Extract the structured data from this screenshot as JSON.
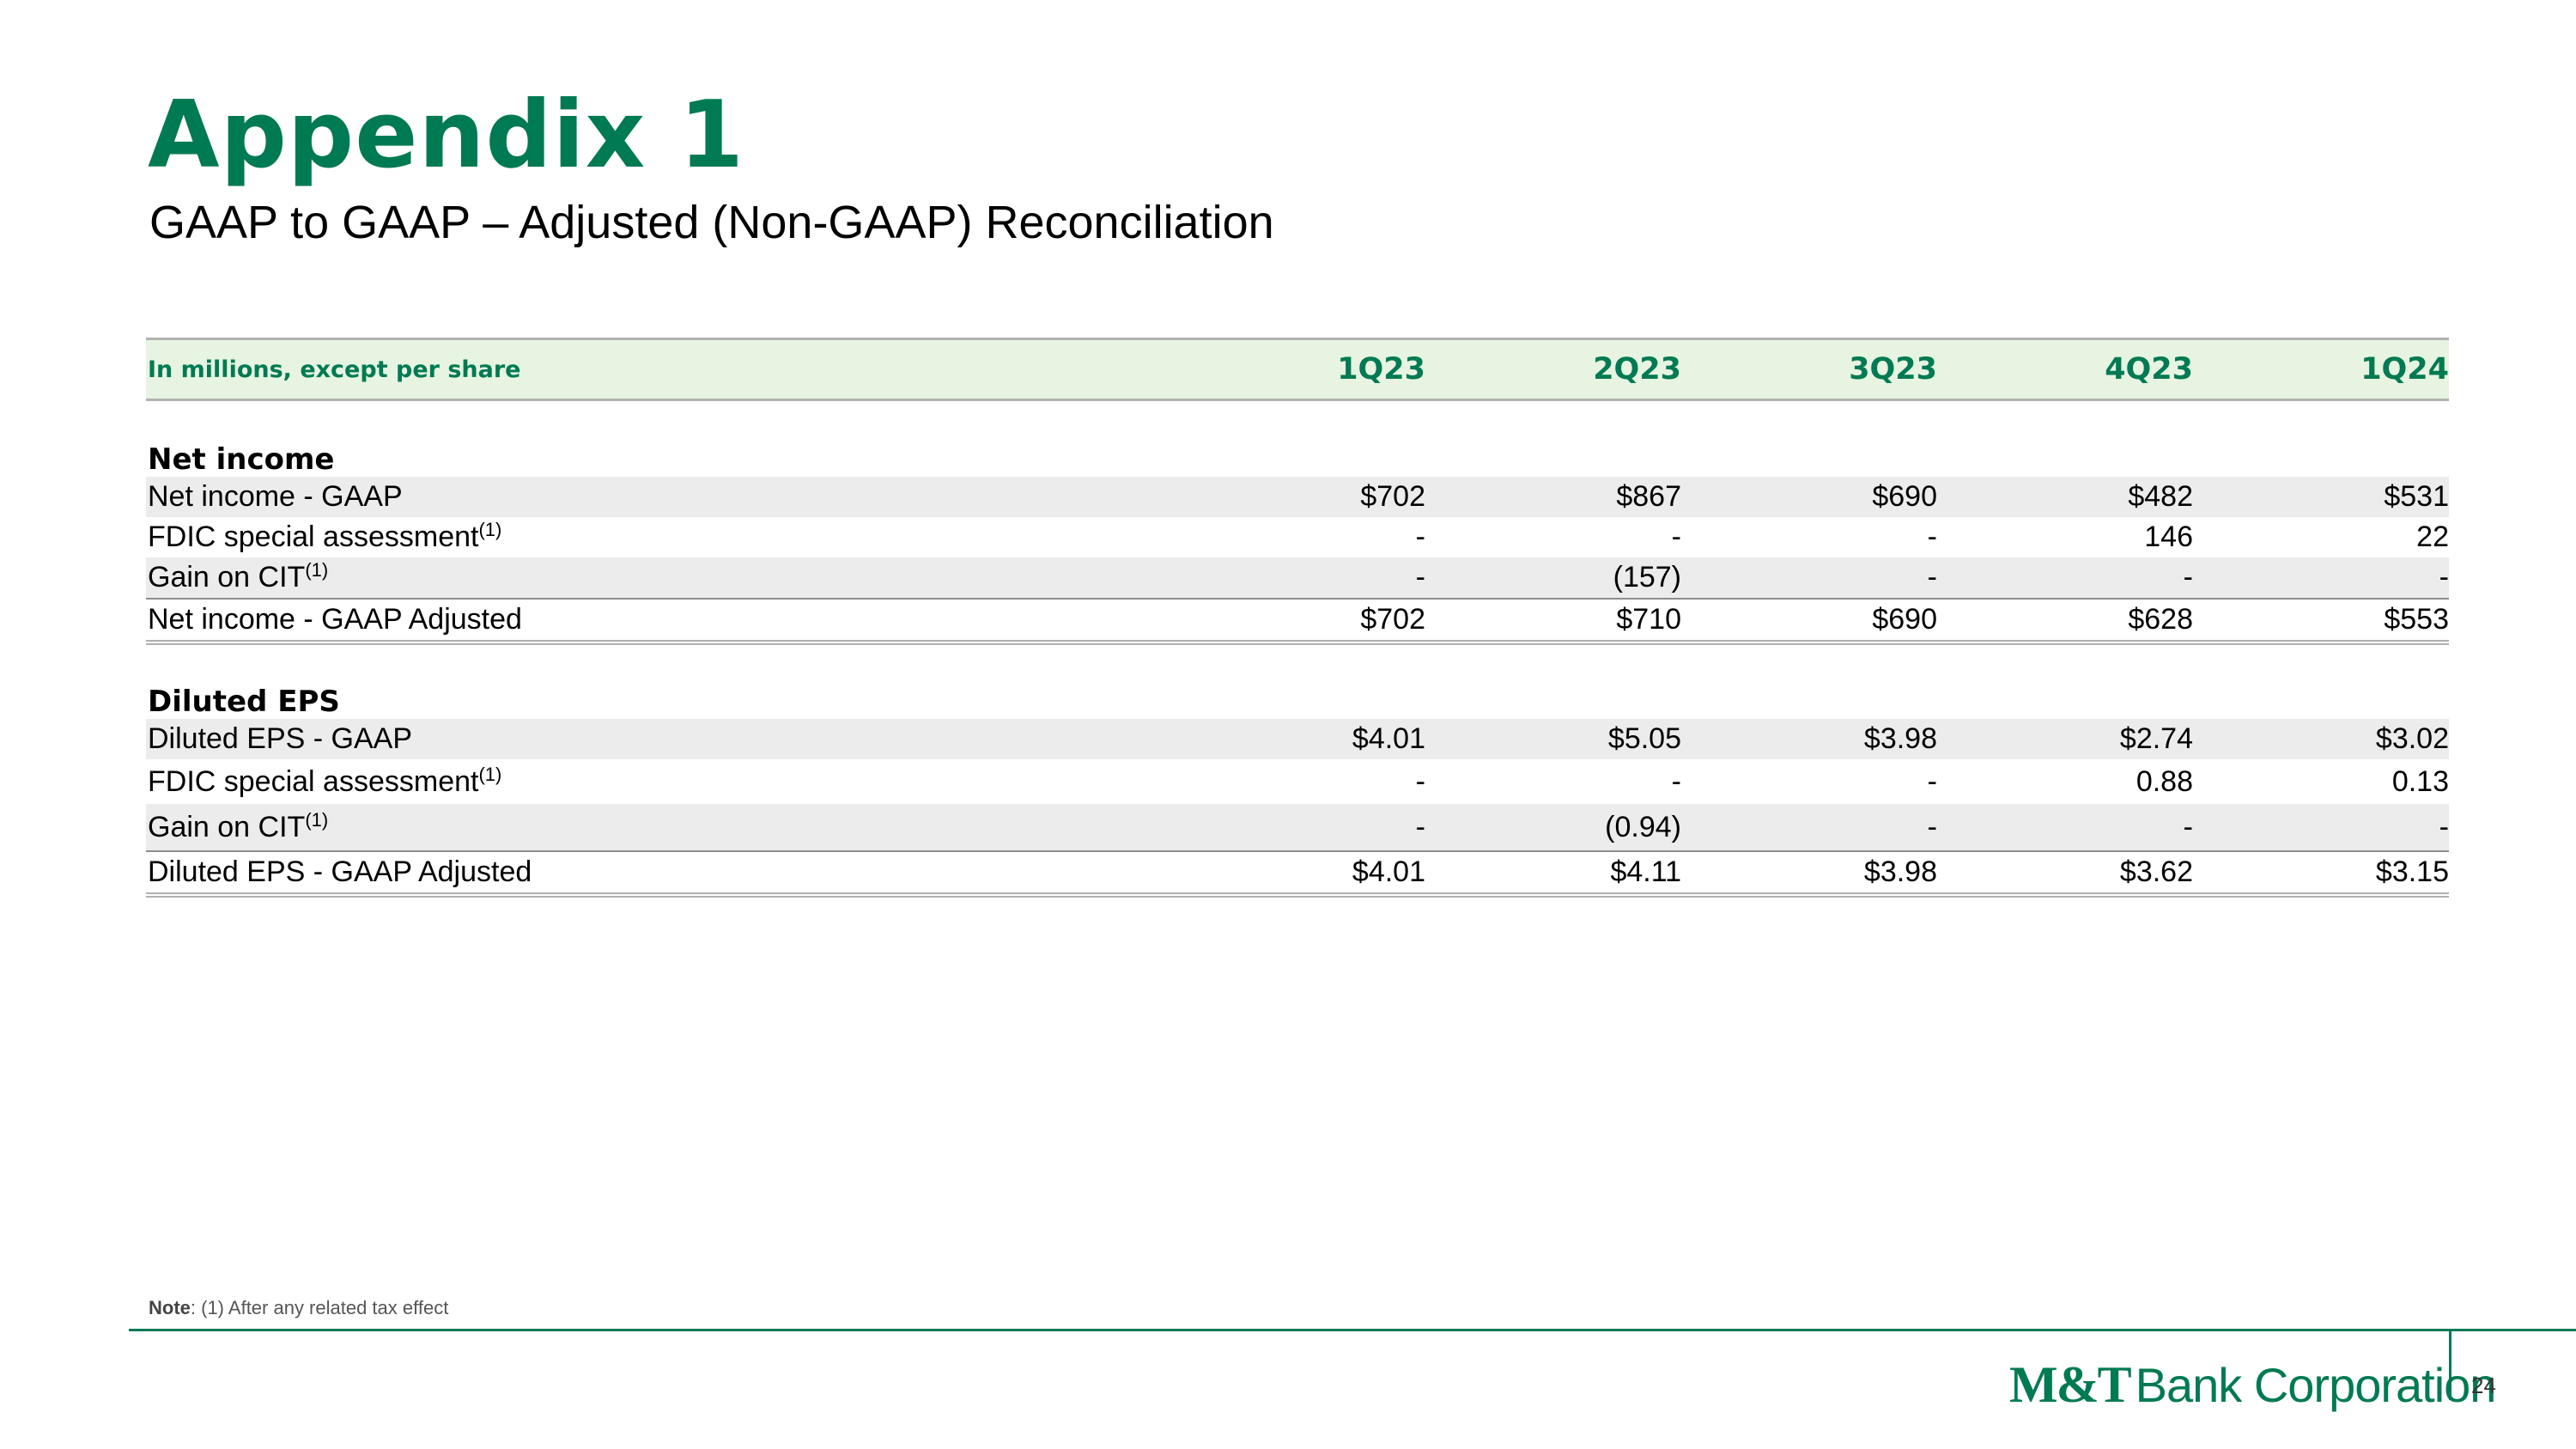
{
  "header": {
    "title": "Appendix 1",
    "subtitle": "GAAP to GAAP – Adjusted (Non-GAAP) Reconciliation"
  },
  "table": {
    "units_label": "In millions, except per share",
    "columns": [
      "1Q23",
      "2Q23",
      "3Q23",
      "4Q23",
      "1Q24"
    ],
    "net_income": {
      "heading": "Net income",
      "rows": [
        {
          "label": "Net income - GAAP",
          "footnote": "",
          "values": [
            "$702",
            "$867",
            "$690",
            "$482",
            "$531"
          ]
        },
        {
          "label": "FDIC special assessment",
          "footnote": "(1)",
          "values": [
            "-",
            "-",
            "-",
            "146",
            "22"
          ]
        },
        {
          "label": "Gain on CIT",
          "footnote": "(1)",
          "values": [
            "-",
            "(157)",
            "-",
            "-",
            "-"
          ]
        },
        {
          "label": "Net income - GAAP Adjusted",
          "footnote": "",
          "values": [
            "$702",
            "$710",
            "$690",
            "$628",
            "$553"
          ]
        }
      ]
    },
    "diluted_eps": {
      "heading": "Diluted EPS",
      "rows": [
        {
          "label": "Diluted EPS - GAAP",
          "footnote": "",
          "values": [
            "$4.01",
            "$5.05",
            "$3.98",
            "$2.74",
            "$3.02"
          ]
        },
        {
          "label": "FDIC special assessment",
          "footnote": "(1)",
          "values": [
            "-",
            "-",
            "-",
            "0.88",
            "0.13"
          ]
        },
        {
          "label": "Gain on CIT",
          "footnote": "(1)",
          "values": [
            "-",
            "(0.94)",
            "-",
            "-",
            "-"
          ]
        },
        {
          "label": "Diluted EPS - GAAP Adjusted",
          "footnote": "",
          "values": [
            "$4.01",
            "$4.11",
            "$3.98",
            "$3.62",
            "$3.15"
          ]
        }
      ]
    }
  },
  "note": {
    "label": "Note",
    "text": ": (1) After any related tax effect"
  },
  "footer": {
    "brand_mark": "M&T",
    "brand_text": "Bank Corporation",
    "page_number": "24"
  },
  "colors": {
    "brand_green": "#007a52",
    "header_fill": "#e6f4e1",
    "row_shade": "#ececed"
  }
}
